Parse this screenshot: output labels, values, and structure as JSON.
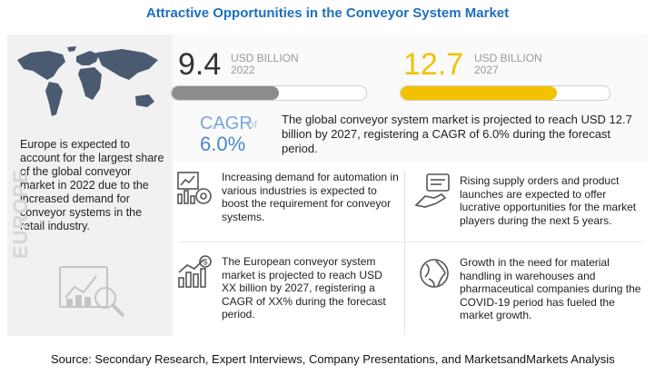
{
  "title": "Attractive Opportunities in the Conveyor System Market",
  "chart_data": {
    "type": "bar",
    "categories": [
      "2022",
      "2027"
    ],
    "values": [
      9.4,
      12.7
    ],
    "unit": "USD BILLION",
    "series": [
      {
        "values": [
          9.4,
          12.7
        ]
      }
    ],
    "cagr_label": "CAGR",
    "cagr_of": "of",
    "cagr_value": "6.0%"
  },
  "stats": {
    "value_2022": "9.4",
    "unit_2022_line1": "USD BILLION",
    "unit_2022_line2": "2022",
    "value_2027": "12.7",
    "unit_2027_line1": "USD BILLION",
    "unit_2027_line2": "2027"
  },
  "description": "The global conveyor system market is projected to reach USD 12.7 billion  by 2027, registering a CAGR of 6.0% during the forecast period.",
  "europe_text": "Europe is expected to account for the largest share of the global conveyor market in 2022 due to the increased demand for conveyor systems in the retail industry.",
  "europe_label": "EUROPE",
  "points": {
    "p1": "Increasing demand for automation in various industries is expected to boost the requirement for conveyor systems.",
    "p2": "Rising supply orders and product launches are expected to offer lucrative opportunities for the market players during the next 5 years.",
    "p3": "The European conveyor system market is projected to reach USD XX billion by 2027, registering a CAGR of XX% during the forecast period.",
    "p4": "Growth in the need for material handling in warehouses and pharmaceutical companies during the COVID-19 period has fueled the market growth."
  },
  "source": "Source: Secondary Research, Expert Interviews, Company Presentations, and MarketsandMarkets Analysis",
  "colors": {
    "title": "#1f6fbf",
    "bar_2022": "#8c8c8c",
    "bar_2027": "#f2c200",
    "cagr": "#4a89c9",
    "map": "#4a5a70"
  },
  "icons": {
    "map": "world-map-icon",
    "analytics": "analytics-magnifier-icon",
    "automation": "automation-chart-icon",
    "orders": "supply-orders-icon",
    "european": "dollar-growth-chart-icon",
    "globe": "globe-icon"
  }
}
